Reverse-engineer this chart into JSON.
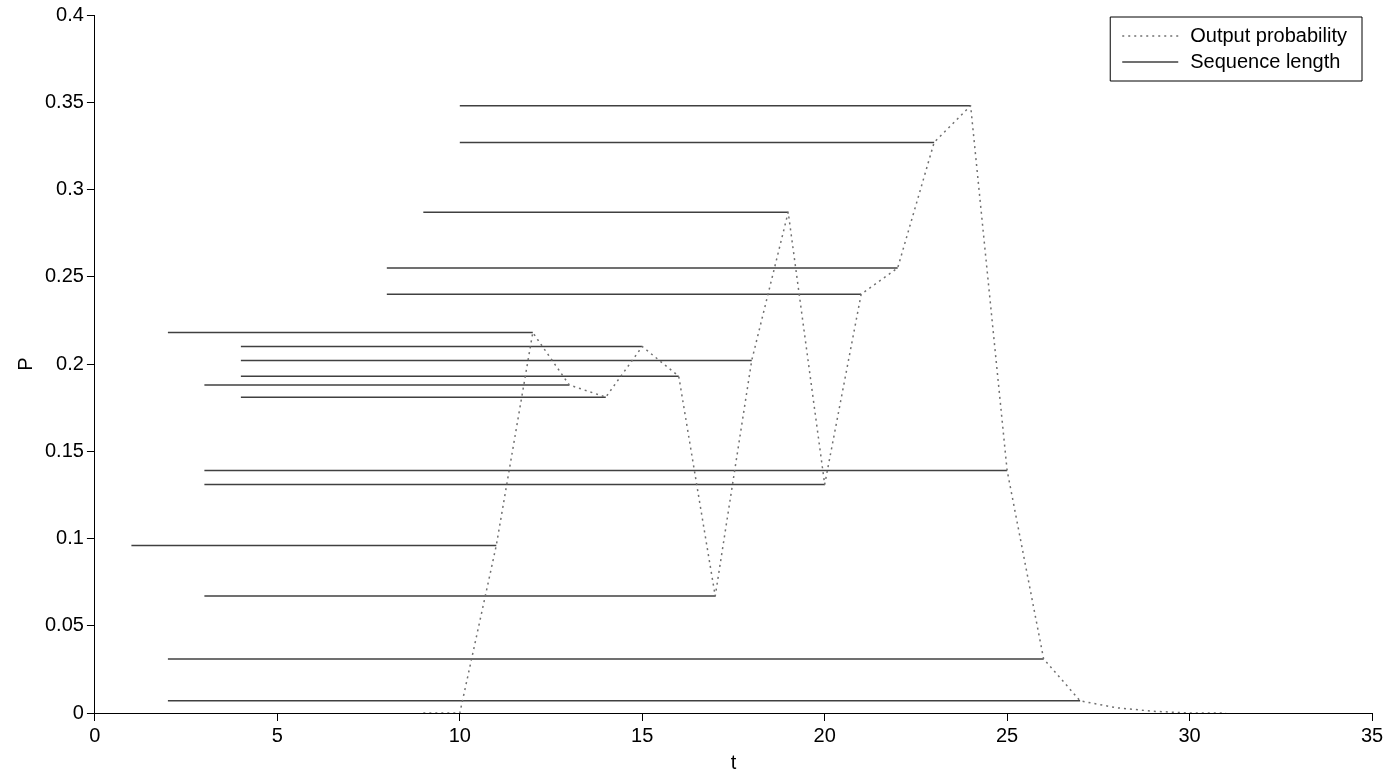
{
  "chart_data": {
    "type": "line",
    "xlabel": "t",
    "ylabel": "P",
    "xlim": [
      0,
      35
    ],
    "xticks": [
      0,
      5,
      10,
      15,
      20,
      25,
      30,
      35
    ],
    "ylim": [
      0,
      0.4
    ],
    "yticks": [
      0,
      0.05,
      0.1,
      0.15,
      0.2,
      0.25,
      0.3,
      0.35,
      0.4
    ],
    "grid": false,
    "legend": "top right",
    "series": [
      {
        "name": "Output probability",
        "color": "#707070",
        "line_style": "dotted",
        "marker": "none",
        "x": [
          9,
          10,
          11,
          12,
          13,
          14,
          15,
          16,
          17,
          18,
          19,
          20,
          21,
          22,
          23,
          24,
          25,
          26,
          27,
          28,
          29,
          30,
          31
        ],
        "values": [
          0,
          0,
          0.096,
          0.218,
          0.188,
          0.181,
          0.21,
          0.193,
          0.067,
          0.202,
          0.287,
          0.131,
          0.24,
          0.255,
          0.327,
          0.348,
          0.139,
          0.031,
          0.007,
          0.003,
          0.001,
          0,
          0
        ]
      },
      {
        "name": "Sequence length",
        "color": "#404040",
        "marker": "none",
        "x": [
          2,
          27
        ],
        "values": [
          0.007,
          0.007
        ]
      },
      {
        "color": "#404040",
        "x": [
          2,
          26
        ],
        "values": [
          0.031,
          0.031
        ]
      },
      {
        "color": "#404040",
        "x": [
          3,
          17
        ],
        "values": [
          0.067,
          0.067
        ]
      },
      {
        "color": "#404040",
        "x": [
          1,
          11
        ],
        "values": [
          0.096,
          0.096
        ]
      },
      {
        "color": "#404040",
        "x": [
          3,
          20
        ],
        "values": [
          0.131,
          0.131
        ]
      },
      {
        "color": "#404040",
        "x": [
          3,
          25
        ],
        "values": [
          0.139,
          0.139
        ]
      },
      {
        "color": "#404040",
        "x": [
          4,
          14
        ],
        "values": [
          0.181,
          0.181
        ]
      },
      {
        "color": "#404040",
        "x": [
          3,
          13
        ],
        "values": [
          0.188,
          0.188
        ]
      },
      {
        "color": "#404040",
        "x": [
          4,
          16
        ],
        "values": [
          0.193,
          0.193
        ]
      },
      {
        "color": "#404040",
        "x": [
          4,
          18
        ],
        "values": [
          0.202,
          0.202
        ]
      },
      {
        "color": "#404040",
        "x": [
          4,
          15
        ],
        "values": [
          0.21,
          0.21
        ]
      },
      {
        "color": "#404040",
        "x": [
          2,
          12
        ],
        "values": [
          0.218,
          0.218
        ]
      },
      {
        "color": "#404040",
        "x": [
          8,
          21
        ],
        "values": [
          0.24,
          0.24
        ]
      },
      {
        "color": "#404040",
        "x": [
          8,
          22
        ],
        "values": [
          0.255,
          0.255
        ]
      },
      {
        "color": "#404040",
        "x": [
          9,
          19
        ],
        "values": [
          0.287,
          0.287
        ]
      },
      {
        "color": "#404040",
        "x": [
          10,
          23
        ],
        "values": [
          0.327,
          0.327
        ]
      },
      {
        "color": "#404040",
        "x": [
          10,
          24
        ],
        "values": [
          0.348,
          0.348
        ]
      }
    ]
  }
}
